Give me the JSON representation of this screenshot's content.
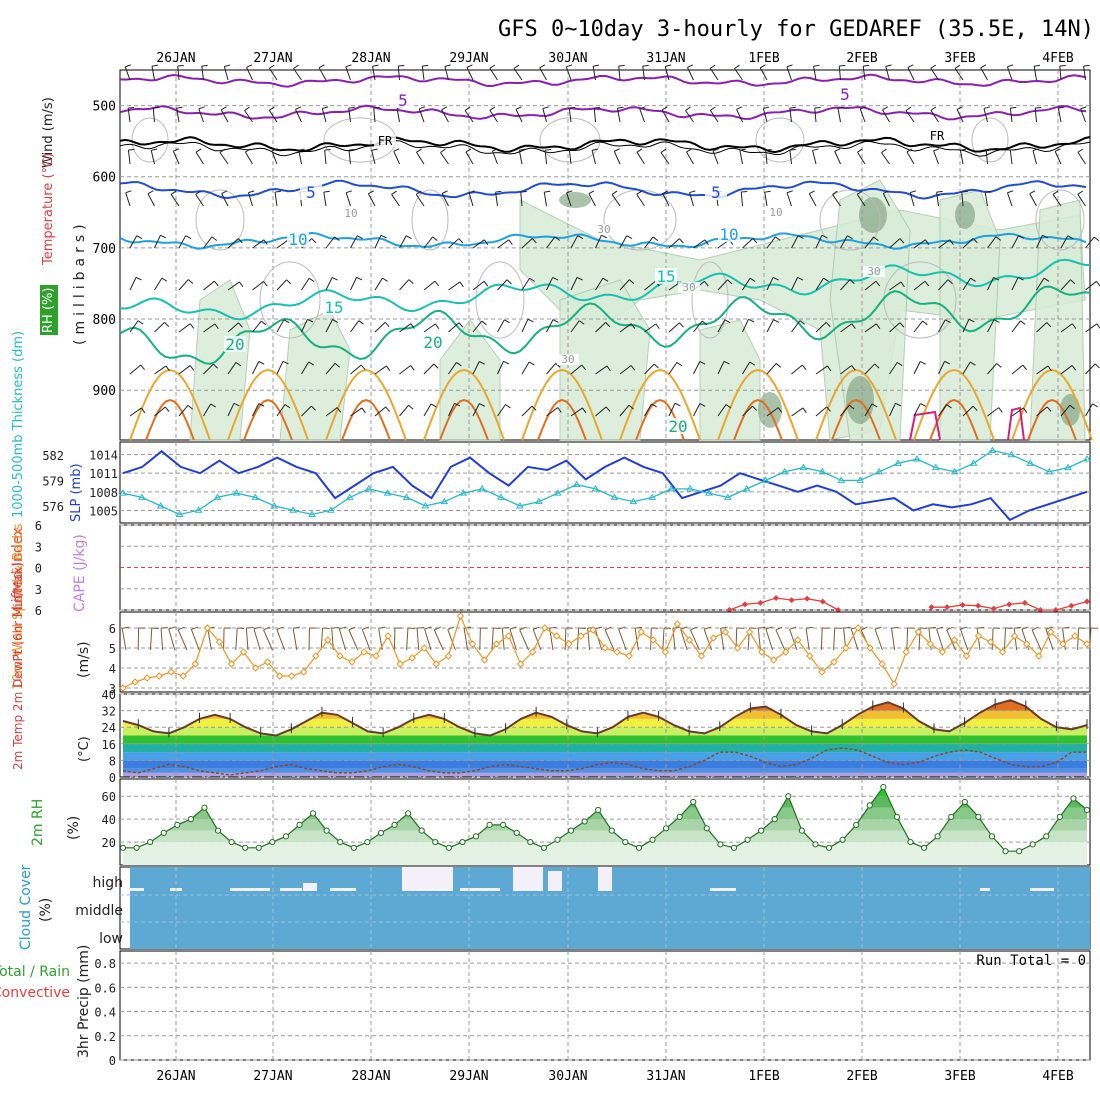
{
  "title": "GFS 0~10day 3-hourly for GEDAREF (35.5E, 14N)",
  "dates": [
    "26JAN",
    "27JAN",
    "28JAN",
    "29JAN",
    "30JAN",
    "31JAN",
    "1FEB",
    "2FEB",
    "3FEB",
    "4FEB"
  ],
  "colors": {
    "grid": "#a0a0a0",
    "slp": "#1f3fd0",
    "thickness": "#2ab8c8",
    "wind10": "#e8962a",
    "rh2m": "#2ea02e",
    "cloud": "#5ea8d4",
    "lifted": "#e04040",
    "iso5_upper": "#8a1fb0",
    "iso_fr": "#000000",
    "iso5": "#1f4fd0",
    "iso10": "#1fa0e0",
    "iso15": "#18c0b0",
    "iso20": "#18b080",
    "iso25": "#e8a830",
    "iso30": "#e07020"
  },
  "panels": {
    "upper": {
      "ylabel_parts": [
        "Wind (m/s)",
        "Temperature (°C)",
        "RH (%)",
        "(millibars)"
      ],
      "yticks": [
        500,
        600,
        700,
        800,
        900
      ],
      "ylim": [
        450,
        970
      ],
      "contour_labels": [
        {
          "text": "5",
          "role": "isotherm"
        },
        {
          "text": "5",
          "role": "isotherm"
        },
        {
          "text": "FR",
          "role": "freezing"
        },
        {
          "text": "FR",
          "role": "freezing"
        },
        {
          "text": "5",
          "role": "isotherm"
        },
        {
          "text": "5",
          "role": "isotherm"
        },
        {
          "text": "10",
          "role": "isotherm"
        },
        {
          "text": "10",
          "role": "isotherm"
        },
        {
          "text": "15",
          "role": "isotherm"
        },
        {
          "text": "15",
          "role": "isotherm"
        },
        {
          "text": "20",
          "role": "isotherm"
        },
        {
          "text": "20",
          "role": "isotherm"
        },
        {
          "text": "20",
          "role": "isotherm"
        },
        {
          "text": "30",
          "role": "rh"
        },
        {
          "text": "30",
          "role": "rh"
        },
        {
          "text": "30",
          "role": "rh"
        },
        {
          "text": "10",
          "role": "rh"
        },
        {
          "text": "10",
          "role": "rh"
        },
        {
          "text": "30",
          "role": "rh"
        }
      ]
    },
    "slp": {
      "left_label": "1000-500mb Thickness (dm)",
      "right_label": "SLP (mb)",
      "thickness_ticks": [
        582,
        579,
        576
      ],
      "slp_ticks": [
        1014,
        1011,
        1008,
        1005
      ]
    },
    "cape": {
      "left_label": "Lifted Index",
      "right_label": "CAPE (J/kg)",
      "yticks": [
        "6",
        "3",
        "0",
        "3",
        "6"
      ]
    },
    "wind10": {
      "label": "10m Wind Speed & Barbs",
      "unit": "(m/s)",
      "yticks": [
        "6",
        "5",
        "4",
        "3"
      ]
    },
    "temp": {
      "label": "2m Temp 2m DewPt (6hr Min/Max)",
      "unit": "(°C)",
      "yticks": [
        "40",
        "32",
        "24",
        "16",
        "8",
        "0"
      ]
    },
    "rh": {
      "label": "2m RH",
      "unit": "(%)",
      "yticks": [
        "60",
        "40",
        "20"
      ]
    },
    "cloud": {
      "label": "Cloud Cover",
      "unit": "(%)",
      "levels": [
        "high",
        "middle",
        "low"
      ]
    },
    "precip": {
      "label_total": "Total / Rain",
      "label_conv": "Convective",
      "label_axis": "3hr Precip (mm)",
      "run_total": "Run Total = 0",
      "yticks": [
        "0.8",
        "0.6",
        "0.4",
        "0.2",
        "0"
      ]
    }
  },
  "chart_data": [
    {
      "type": "line",
      "series": [
        {
          "name": "SLP (mb)",
          "values": [
            1011,
            1012,
            1014.5,
            1012,
            1011,
            1013,
            1011,
            1012,
            1013.5,
            1012,
            1011,
            1007,
            1009,
            1011,
            1012,
            1009,
            1007,
            1012,
            1013.5,
            1011,
            1009,
            1012,
            1011.5,
            1013,
            1010,
            1012,
            1013.5,
            1012,
            1011,
            1007,
            1008,
            1009,
            1011,
            1010,
            1009,
            1008,
            1009,
            1008,
            1006,
            1006.5,
            1007,
            1005,
            1006,
            1005.5,
            1006,
            1007,
            1003.5,
            1005,
            1006,
            1007,
            1008
          ]
        },
        {
          "name": "1000-500mb Thickness (dm)",
          "values": [
            577.5,
            577,
            576,
            575,
            575.5,
            577,
            577.5,
            577,
            576,
            575.5,
            575,
            575.5,
            577,
            578,
            577.5,
            577,
            576,
            576.5,
            577.5,
            578,
            577,
            576,
            576.5,
            577.5,
            578.5,
            578,
            577,
            576.5,
            577,
            578,
            578,
            577.5,
            577,
            578,
            579,
            580,
            580.5,
            580,
            579,
            579,
            580,
            581,
            581.5,
            580.5,
            580,
            581,
            582.5,
            582,
            581,
            580,
            580.5,
            581.5
          ]
        }
      ],
      "ylim": [
        1003,
        1016
      ]
    },
    {
      "type": "line",
      "series": [
        {
          "name": "Lifted Index",
          "values": [
            null,
            null,
            null,
            null,
            null,
            null,
            null,
            null,
            null,
            null,
            null,
            null,
            null,
            null,
            null,
            null,
            null,
            null,
            null,
            null,
            null,
            null,
            null,
            null,
            null,
            null,
            null,
            null,
            null,
            null,
            null,
            null,
            null,
            null,
            null,
            null,
            null,
            null,
            null,
            6,
            5.2,
            5,
            4.3,
            4.6,
            4.4,
            4.8,
            6,
            null,
            null,
            null,
            null,
            null,
            5.6,
            5.6,
            5.3,
            5.4,
            5.8,
            5.2,
            5,
            6,
            6,
            5.4,
            4.8
          ]
        }
      ],
      "ylim": [
        -6,
        6
      ]
    },
    {
      "type": "line",
      "series": [
        {
          "name": "10m Wind Speed (m/s)",
          "values": [
            3,
            3.3,
            3.5,
            3.6,
            3.8,
            3.6,
            4.2,
            6,
            5.3,
            4.2,
            4.8,
            4,
            4.3,
            3.6,
            3.6,
            3.8,
            4.6,
            5.4,
            4.6,
            4.3,
            4.8,
            4.6,
            5.6,
            4.2,
            4.5,
            5,
            4.2,
            4.6,
            6.6,
            5.2,
            4.4,
            5.2,
            5.6,
            4.2,
            4.8,
            6,
            5.6,
            5.2,
            5.6,
            5.9,
            5,
            4.8,
            4.6,
            5.8,
            5.4,
            4.8,
            6.2,
            5.4,
            4.6,
            5.5,
            5.8,
            5,
            5.8,
            4.8,
            4.4,
            4.8,
            5.4,
            4.6,
            3.8,
            4.3,
            5,
            6,
            5,
            4.2,
            3.2,
            4.8,
            5.8,
            5.2,
            4.8,
            5.4,
            4.6,
            5.6,
            5.3,
            4.8,
            5.6,
            5.2,
            4.6,
            5.8,
            5.2,
            5.6,
            5.2
          ]
        }
      ],
      "ylim": [
        2.8,
        6.8
      ]
    },
    {
      "type": "area",
      "series": [
        {
          "name": "2m Temp (°C)",
          "values": [
            27,
            25,
            22,
            21,
            24,
            28,
            30,
            28,
            24,
            21,
            20,
            23,
            27,
            31,
            30,
            26,
            22,
            21,
            24,
            28,
            30,
            28,
            24,
            21,
            20,
            23,
            28,
            31,
            29,
            25,
            22,
            21,
            24,
            29,
            31,
            29,
            25,
            22,
            21,
            24,
            29,
            33,
            34,
            30,
            25,
            22,
            21,
            25,
            30,
            34,
            36,
            33,
            27,
            23,
            22,
            26,
            31,
            35,
            37,
            34,
            28,
            24,
            23,
            25
          ]
        },
        {
          "name": "2m DewPt (°C)",
          "values": [
            3,
            2,
            4,
            6,
            5,
            3,
            2,
            1,
            2,
            3,
            5,
            6,
            4,
            3,
            2,
            2,
            3,
            5,
            6,
            5,
            3,
            2,
            2,
            3,
            5,
            6,
            5,
            4,
            3,
            3,
            4,
            6,
            7,
            6,
            4,
            3,
            3,
            5,
            8,
            12,
            12,
            10,
            7,
            5,
            6,
            9,
            13,
            14,
            13,
            10,
            7,
            6,
            7,
            10,
            12,
            13,
            12,
            9,
            6,
            5,
            5,
            7,
            12,
            12
          ]
        }
      ],
      "ylim": [
        0,
        40
      ]
    },
    {
      "type": "area",
      "series": [
        {
          "name": "2m RH (%)",
          "values": [
            15,
            15,
            20,
            28,
            35,
            40,
            50,
            30,
            20,
            15,
            15,
            20,
            25,
            35,
            45,
            30,
            20,
            15,
            20,
            28,
            35,
            45,
            30,
            20,
            15,
            20,
            25,
            35,
            35,
            28,
            20,
            15,
            22,
            30,
            38,
            48,
            30,
            20,
            15,
            22,
            32,
            42,
            55,
            32,
            18,
            15,
            22,
            30,
            40,
            60,
            30,
            18,
            15,
            22,
            35,
            52,
            68,
            42,
            20,
            15,
            25,
            42,
            55,
            42,
            25,
            12,
            12,
            18,
            25,
            42,
            58,
            48
          ]
        }
      ],
      "ylim": [
        0,
        75
      ]
    }
  ]
}
